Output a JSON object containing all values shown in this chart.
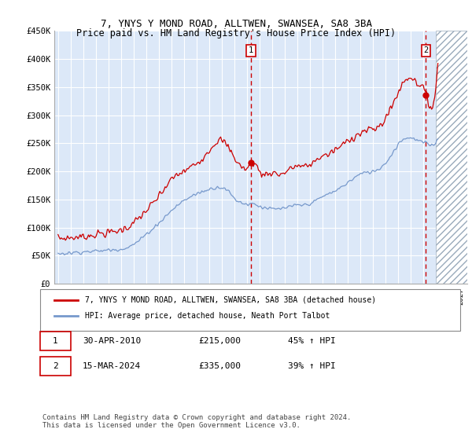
{
  "title": "7, YNYS Y MOND ROAD, ALLTWEN, SWANSEA, SA8 3BA",
  "subtitle": "Price paid vs. HM Land Registry's House Price Index (HPI)",
  "ylim": [
    0,
    450000
  ],
  "yticks": [
    0,
    50000,
    100000,
    150000,
    200000,
    250000,
    300000,
    350000,
    400000,
    450000
  ],
  "ytick_labels": [
    "£0",
    "£50K",
    "£100K",
    "£150K",
    "£200K",
    "£250K",
    "£300K",
    "£350K",
    "£400K",
    "£450K"
  ],
  "xlim_start": 1994.7,
  "xlim_end": 2027.5,
  "hatch_start": 2025.0,
  "sale1_x": 2010.33,
  "sale1_y": 215000,
  "sale1_label": "30-APR-2010",
  "sale1_price": "£215,000",
  "sale1_hpi": "45% ↑ HPI",
  "sale2_x": 2024.21,
  "sale2_y": 335000,
  "sale2_label": "15-MAR-2024",
  "sale2_price": "£335,000",
  "sale2_hpi": "39% ↑ HPI",
  "legend_red": "7, YNYS Y MOND ROAD, ALLTWEN, SWANSEA, SA8 3BA (detached house)",
  "legend_blue": "HPI: Average price, detached house, Neath Port Talbot",
  "footnote": "Contains HM Land Registry data © Crown copyright and database right 2024.\nThis data is licensed under the Open Government Licence v3.0.",
  "plot_bg": "#dce8f8",
  "red_color": "#cc0000",
  "blue_color": "#7799cc",
  "grid_color": "#ffffff"
}
